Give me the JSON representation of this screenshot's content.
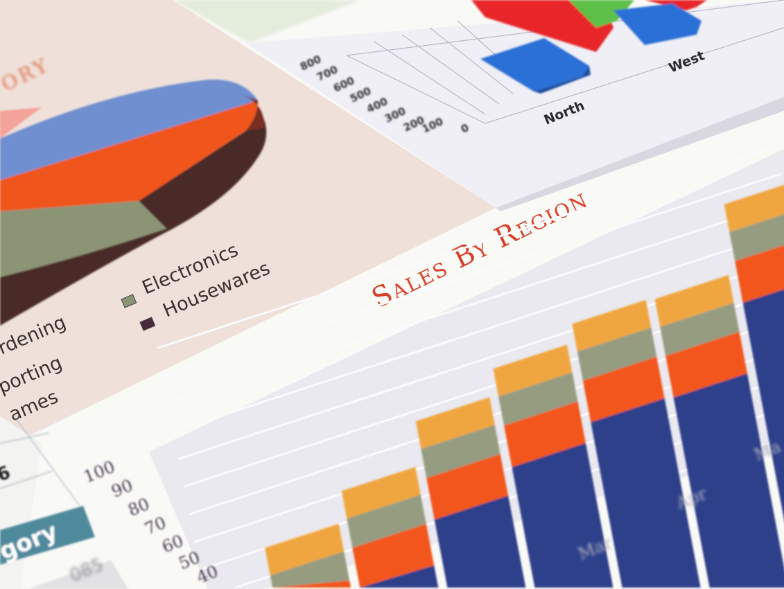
{
  "pie_chart": {
    "title_fragment": "ORY",
    "legend": [
      "Electronics",
      "Housewares",
      "rdening",
      "porting",
      "ames"
    ],
    "colors": {
      "blue": "#6f8fd0",
      "red": "#f0541e",
      "sage": "#8c9476",
      "dark": "#4a2a26",
      "pink": "#f4a39a"
    }
  },
  "region_chart": {
    "y_ticks": [
      "800",
      "700",
      "600",
      "500",
      "400",
      "300",
      "200",
      "100",
      "0"
    ],
    "categories": [
      "North",
      "West"
    ],
    "colors": {
      "red": "#e8262c",
      "green": "#5fc04a",
      "blue": "#2b6fd6"
    }
  },
  "sales_chart": {
    "title": "Sales By Region",
    "y_ticks": [
      "100",
      "90",
      "80",
      "70",
      "60",
      "50",
      "40"
    ],
    "months": [
      "Mar",
      "Apr",
      "Ma"
    ],
    "colors": {
      "orange": "#f0a640",
      "sage": "#969c80",
      "red": "#f2561c",
      "navy": "#2f3f8a",
      "title": "#d8402a"
    }
  },
  "table": {
    "cell_value": "6",
    "header": "gory",
    "footer_value": "085"
  }
}
